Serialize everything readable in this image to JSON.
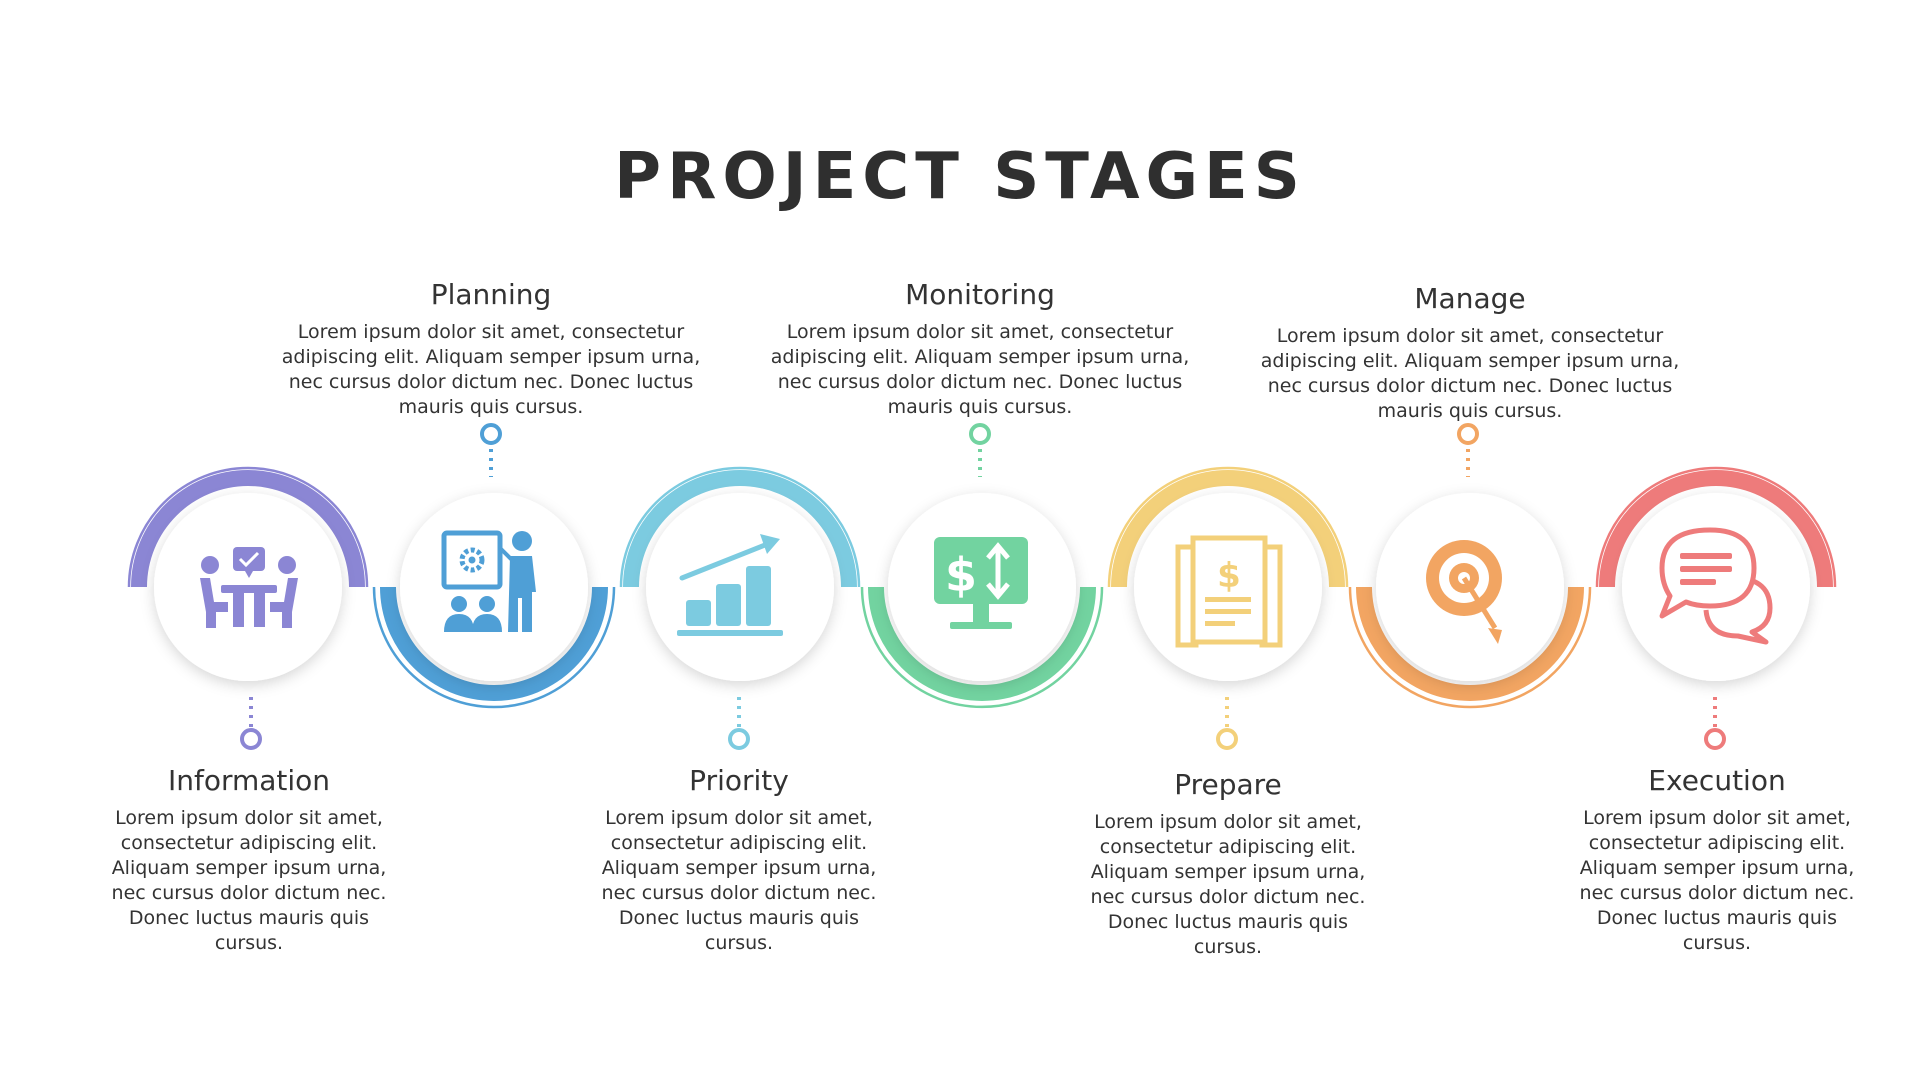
{
  "title": "PROJECT STAGES",
  "stages": [
    {
      "title": "Information",
      "description": "Lorem ipsum dolor sit amet, consectetur adipiscing elit. Aliquam semper ipsum urna, nec cursus dolor dictum nec. Donec luctus mauris quis cursus.",
      "icon": "meeting-people-icon",
      "color": "#8b86d4"
    },
    {
      "title": "Planning",
      "description": "Lorem ipsum dolor sit amet, consectetur adipiscing elit. Aliquam semper ipsum urna, nec cursus dolor dictum nec. Donec luctus mauris quis cursus.",
      "icon": "presentation-icon",
      "color": "#4f9fd6"
    },
    {
      "title": "Priority",
      "description": "Lorem ipsum dolor sit amet, consectetur adipiscing elit. Aliquam semper ipsum urna, nec cursus dolor dictum nec. Donec luctus mauris quis cursus.",
      "icon": "growth-chart-icon",
      "color": "#7ccbe0"
    },
    {
      "title": "Monitoring",
      "description": "Lorem ipsum dolor sit amet, consectetur adipiscing elit. Aliquam semper ipsum urna, nec cursus dolor dictum nec. Donec luctus mauris quis cursus.",
      "icon": "monitor-dollar-icon",
      "color": "#72d3a0"
    },
    {
      "title": "Prepare",
      "description": "Lorem ipsum dolor sit amet, consectetur adipiscing elit. Aliquam semper ipsum urna, nec cursus dolor dictum nec. Donec luctus mauris quis cursus.",
      "icon": "invoice-document-icon",
      "color": "#f3d07a"
    },
    {
      "title": "Manage",
      "description": "Lorem ipsum dolor sit amet, consectetur adipiscing elit. Aliquam semper ipsum urna, nec cursus dolor dictum nec. Donec luctus mauris quis cursus.",
      "icon": "target-icon",
      "color": "#f2a562"
    },
    {
      "title": "Execution",
      "description": "Lorem ipsum dolor sit amet, consectetur adipiscing elit. Aliquam semper ipsum urna, nec cursus dolor dictum nec. Donec luctus mauris quis cursus.",
      "icon": "chat-bubbles-icon",
      "color": "#ee7b7b"
    }
  ]
}
